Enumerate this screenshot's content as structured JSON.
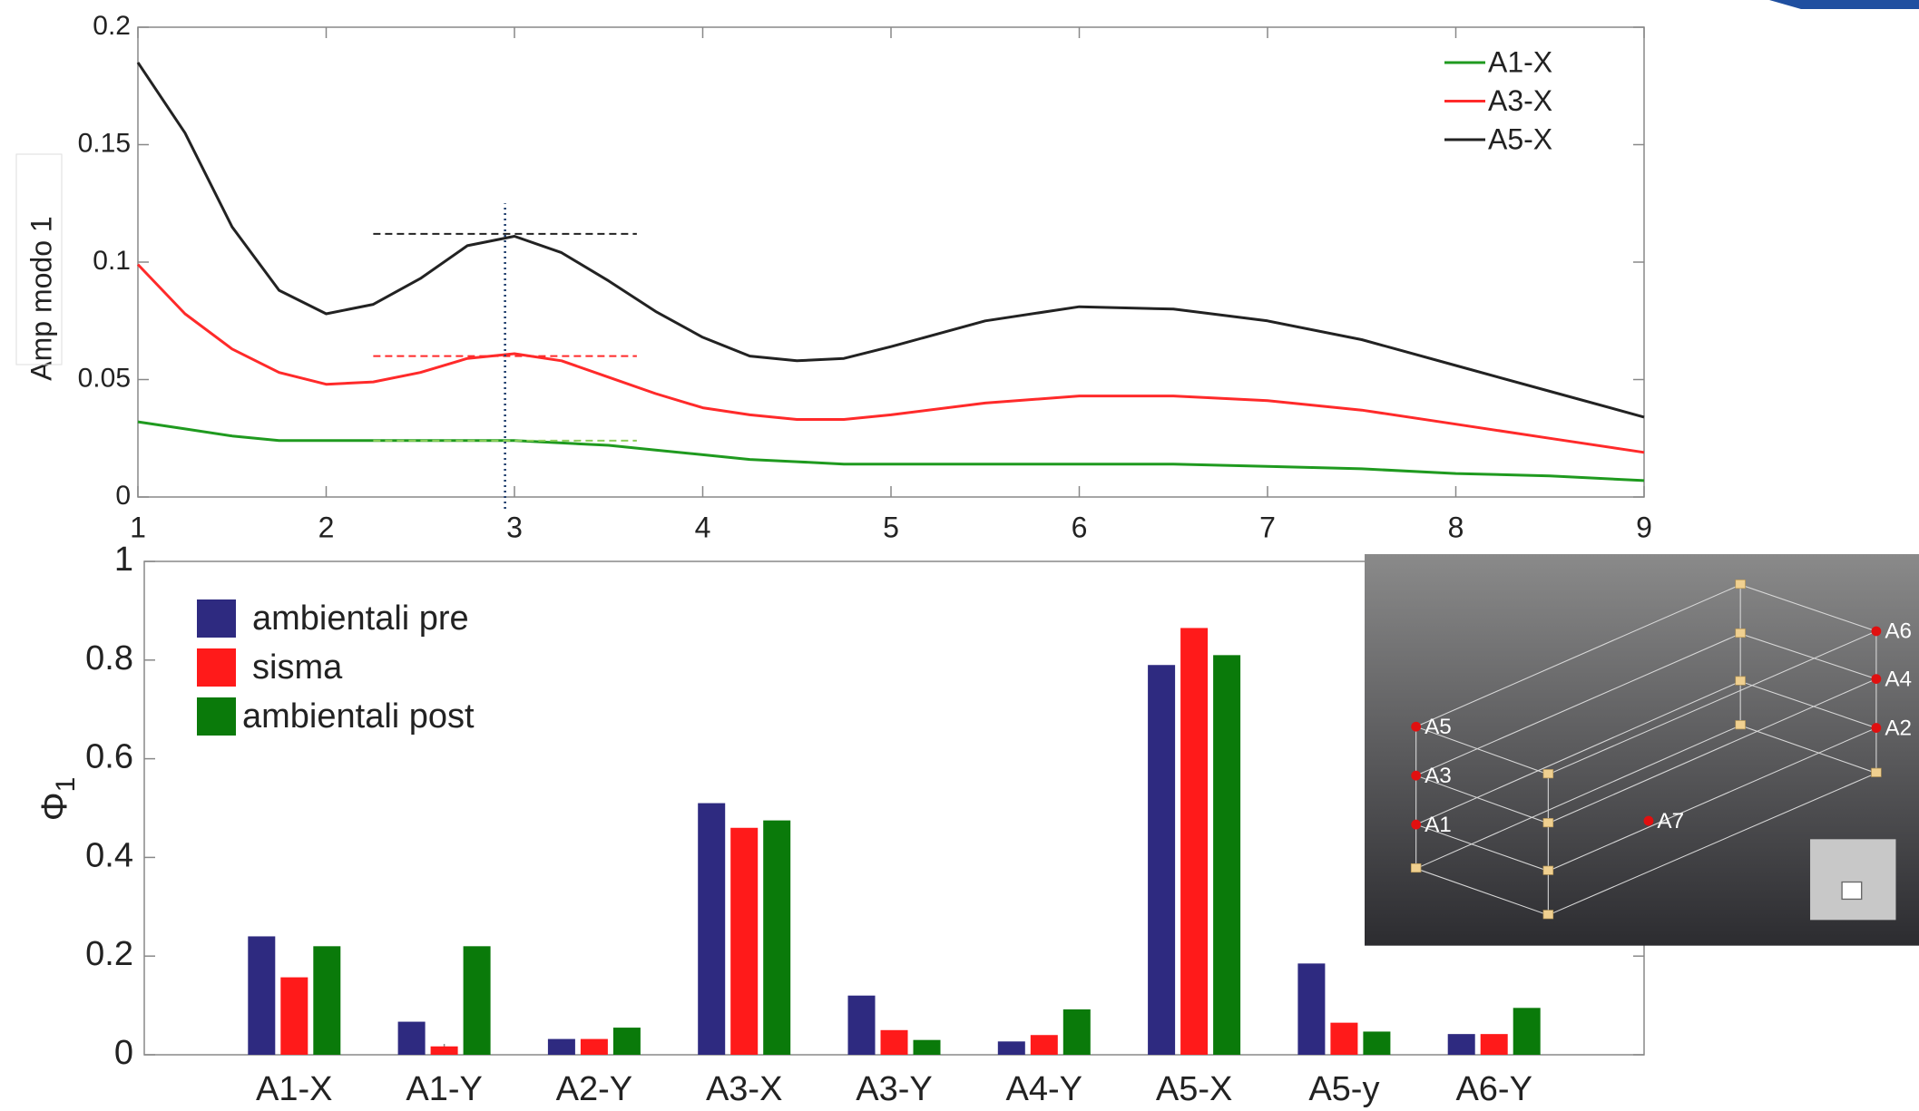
{
  "chart_data": [
    {
      "type": "line",
      "ylabel": "Amp modo 1",
      "x": [
        1,
        1.25,
        1.5,
        1.75,
        2,
        2.25,
        2.5,
        2.75,
        3,
        3.25,
        3.5,
        3.75,
        4,
        4.25,
        4.5,
        4.75,
        5,
        5.5,
        6,
        6.5,
        7,
        7.5,
        8,
        8.5,
        9
      ],
      "series": [
        {
          "name": "A1-X",
          "color": "#1f9a1f",
          "values": [
            0.032,
            0.029,
            0.026,
            0.024,
            0.024,
            0.024,
            0.024,
            0.024,
            0.024,
            0.023,
            0.022,
            0.02,
            0.018,
            0.016,
            0.015,
            0.014,
            0.014,
            0.014,
            0.014,
            0.014,
            0.013,
            0.012,
            0.01,
            0.009,
            0.007
          ]
        },
        {
          "name": "A3-X",
          "color": "#ff2a2a",
          "values": [
            0.099,
            0.078,
            0.063,
            0.053,
            0.048,
            0.049,
            0.053,
            0.059,
            0.061,
            0.058,
            0.051,
            0.044,
            0.038,
            0.035,
            0.033,
            0.033,
            0.035,
            0.04,
            0.043,
            0.043,
            0.041,
            0.037,
            0.031,
            0.025,
            0.019
          ]
        },
        {
          "name": "A5-X",
          "color": "#222222",
          "values": [
            0.185,
            0.155,
            0.115,
            0.088,
            0.078,
            0.082,
            0.093,
            0.107,
            0.111,
            0.104,
            0.092,
            0.079,
            0.068,
            0.06,
            0.058,
            0.059,
            0.064,
            0.075,
            0.081,
            0.08,
            0.075,
            0.067,
            0.056,
            0.045,
            0.034
          ]
        }
      ],
      "xlim": [
        1,
        9
      ],
      "xticks": [
        1,
        2,
        3,
        4,
        5,
        6,
        7,
        8,
        9
      ],
      "ylim": [
        0,
        0.2
      ],
      "yticks": [
        0,
        0.05,
        0.1,
        0.15,
        0.2
      ],
      "legend": "upper right",
      "reference_lines": [
        {
          "y": 0.112,
          "x": [
            2.25,
            3.65
          ],
          "color": "#222222"
        },
        {
          "y": 0.06,
          "x": [
            2.25,
            3.65
          ],
          "color": "#ff2a2a"
        },
        {
          "y": 0.024,
          "x": [
            2.25,
            3.65
          ],
          "color": "#8ccf5a"
        }
      ],
      "vline": {
        "x": 2.95,
        "y": [
          -0.005,
          0.125
        ],
        "color": "#1a3a6a"
      }
    },
    {
      "type": "bar",
      "ylabel": {
        "symbol": "Φ",
        "subscript": "1"
      },
      "categories": [
        "A1-X",
        "A1-Y",
        "A2-Y",
        "A3-X",
        "A3-Y",
        "A4-Y",
        "A5-X",
        "A5-y",
        "A6-Y"
      ],
      "series": [
        {
          "name": "ambientali pre",
          "color": "#2e2a80",
          "values": [
            0.24,
            0.067,
            0.032,
            0.51,
            0.12,
            0.027,
            0.79,
            0.185,
            0.042
          ]
        },
        {
          "name": "sisma",
          "color": "#ff1a1a",
          "values": [
            0.157,
            0.017,
            0.032,
            0.46,
            0.05,
            0.04,
            0.865,
            0.065,
            0.042
          ]
        },
        {
          "name": "ambientali post",
          "color": "#0a7a0a",
          "values": [
            0.22,
            0.22,
            0.055,
            0.475,
            0.03,
            0.092,
            0.81,
            0.047,
            0.095
          ]
        }
      ],
      "ylim": [
        0,
        1
      ],
      "yticks": [
        0,
        0.2,
        0.4,
        0.6,
        0.8,
        1
      ],
      "legend": "upper left"
    }
  ],
  "inset": {
    "labels": [
      "A5",
      "A3",
      "A1",
      "A6",
      "A4",
      "A2",
      "A7"
    ]
  }
}
